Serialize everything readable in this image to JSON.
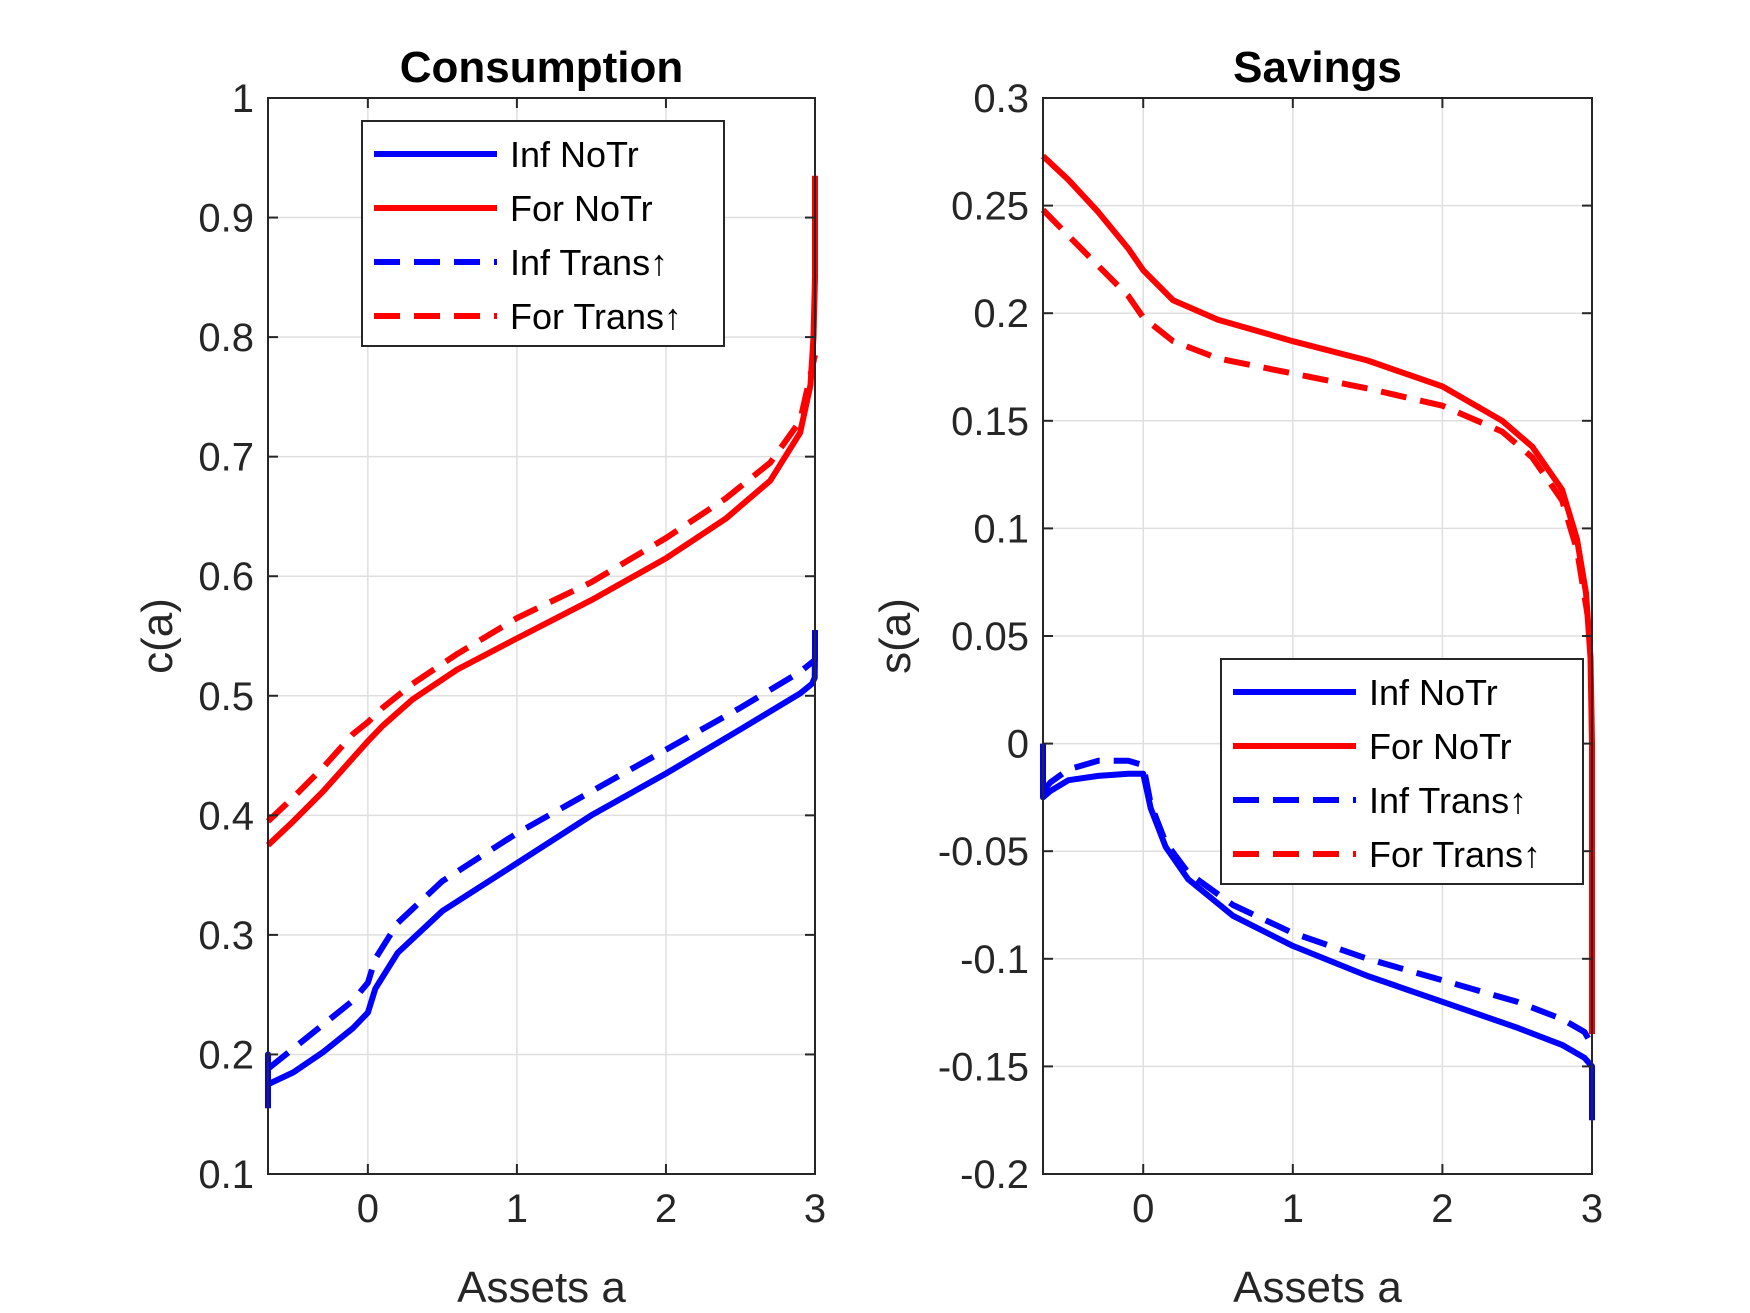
{
  "chart_data": [
    {
      "type": "line",
      "title": "Consumption",
      "xlabel": "Assets a",
      "ylabel": "c(a)",
      "xlim": [
        -0.67,
        3.0
      ],
      "ylim": [
        0.1,
        1.0
      ],
      "xticks": [
        0,
        1,
        2,
        3
      ],
      "yticks": [
        0.1,
        0.2,
        0.3,
        0.4,
        0.5,
        0.6,
        0.7,
        0.8,
        0.9,
        1
      ],
      "xtick_labels": [
        "0",
        "1",
        "2",
        "3"
      ],
      "ytick_labels": [
        "0.1",
        "0.2",
        "0.3",
        "0.4",
        "0.5",
        "0.6",
        "0.7",
        "0.8",
        "0.9",
        "1"
      ],
      "grid": true,
      "legend_position": "top-center",
      "series": [
        {
          "name": "Inf NoTr",
          "color": "#0000ff",
          "dash": "solid",
          "x": [
            -0.67,
            -0.67,
            -0.67,
            -0.5,
            -0.3,
            -0.1,
            0.0,
            0.05,
            0.2,
            0.5,
            1.0,
            1.5,
            2.0,
            2.5,
            2.9,
            2.98,
            2.998,
            3.0,
            3.0
          ],
          "y": [
            0.155,
            0.2,
            0.175,
            0.185,
            0.202,
            0.222,
            0.235,
            0.255,
            0.285,
            0.32,
            0.36,
            0.4,
            0.435,
            0.472,
            0.502,
            0.51,
            0.515,
            0.535,
            0.555
          ]
        },
        {
          "name": "For NoTr",
          "color": "#ff0000",
          "dash": "solid",
          "x": [
            -0.67,
            -0.5,
            -0.3,
            -0.1,
            0.0,
            0.1,
            0.3,
            0.6,
            1.0,
            1.5,
            2.0,
            2.4,
            2.7,
            2.9,
            2.97,
            2.99,
            3.0,
            3.0
          ],
          "y": [
            0.375,
            0.395,
            0.42,
            0.448,
            0.462,
            0.475,
            0.497,
            0.522,
            0.548,
            0.58,
            0.615,
            0.648,
            0.68,
            0.72,
            0.76,
            0.8,
            0.85,
            0.935
          ]
        },
        {
          "name": "Inf Trans↑",
          "color": "#0000ff",
          "dash": "dashed",
          "x": [
            -0.67,
            -0.5,
            -0.3,
            -0.1,
            0.0,
            0.05,
            0.2,
            0.5,
            1.0,
            1.5,
            2.0,
            2.5,
            2.9,
            3.0,
            3.0
          ],
          "y": [
            0.188,
            0.205,
            0.225,
            0.245,
            0.26,
            0.28,
            0.31,
            0.345,
            0.385,
            0.42,
            0.455,
            0.49,
            0.52,
            0.53,
            0.535
          ]
        },
        {
          "name": "For Trans↑",
          "color": "#ff0000",
          "dash": "dashed",
          "x": [
            -0.67,
            -0.5,
            -0.3,
            -0.1,
            0.0,
            0.1,
            0.3,
            0.6,
            1.0,
            1.5,
            2.0,
            2.4,
            2.7,
            2.9,
            3.0
          ],
          "y": [
            0.395,
            0.415,
            0.44,
            0.468,
            0.478,
            0.49,
            0.51,
            0.535,
            0.565,
            0.595,
            0.632,
            0.665,
            0.695,
            0.73,
            0.785
          ]
        }
      ]
    },
    {
      "type": "line",
      "title": "Savings",
      "xlabel": "Assets a",
      "ylabel": "s(a)",
      "xlim": [
        -0.67,
        3.0
      ],
      "ylim": [
        -0.2,
        0.3
      ],
      "xticks": [
        0,
        1,
        2,
        3
      ],
      "yticks": [
        -0.2,
        -0.15,
        -0.1,
        -0.05,
        0,
        0.05,
        0.1,
        0.15,
        0.2,
        0.25,
        0.3
      ],
      "xtick_labels": [
        "0",
        "1",
        "2",
        "3"
      ],
      "ytick_labels": [
        "-0.2",
        "-0.15",
        "-0.1",
        "-0.05",
        "0",
        "0.05",
        "0.1",
        "0.15",
        "0.2",
        "0.25",
        "0.3"
      ],
      "grid": true,
      "legend_position": "middle-right",
      "series": [
        {
          "name": "Inf NoTr",
          "color": "#0000ff",
          "dash": "solid",
          "x": [
            -0.67,
            -0.67,
            -0.62,
            -0.5,
            -0.3,
            -0.1,
            0.0,
            0.05,
            0.15,
            0.3,
            0.6,
            1.0,
            1.5,
            2.0,
            2.5,
            2.8,
            2.95,
            3.0,
            3.0
          ],
          "y": [
            0.0,
            -0.025,
            -0.022,
            -0.017,
            -0.015,
            -0.014,
            -0.014,
            -0.03,
            -0.048,
            -0.063,
            -0.08,
            -0.094,
            -0.108,
            -0.12,
            -0.132,
            -0.14,
            -0.146,
            -0.15,
            -0.175
          ]
        },
        {
          "name": "For NoTr",
          "color": "#ff0000",
          "dash": "solid",
          "x": [
            -0.67,
            -0.5,
            -0.3,
            -0.1,
            0.0,
            0.2,
            0.5,
            1.0,
            1.5,
            2.0,
            2.4,
            2.6,
            2.8,
            2.9,
            2.96,
            2.99,
            3.0,
            3.0
          ],
          "y": [
            0.273,
            0.262,
            0.247,
            0.23,
            0.22,
            0.206,
            0.197,
            0.187,
            0.178,
            0.166,
            0.15,
            0.138,
            0.118,
            0.095,
            0.07,
            0.04,
            0.0,
            -0.135
          ]
        },
        {
          "name": "Inf Trans↑",
          "color": "#0000ff",
          "dash": "dashed",
          "x": [
            -0.67,
            -0.62,
            -0.5,
            -0.3,
            -0.1,
            0.0,
            0.05,
            0.15,
            0.3,
            0.6,
            1.0,
            1.5,
            2.0,
            2.5,
            2.8,
            2.95,
            3.0
          ],
          "y": [
            -0.022,
            -0.018,
            -0.012,
            -0.008,
            -0.008,
            -0.01,
            -0.028,
            -0.046,
            -0.06,
            -0.075,
            -0.088,
            -0.1,
            -0.11,
            -0.12,
            -0.128,
            -0.134,
            -0.14
          ]
        },
        {
          "name": "For Trans↑",
          "color": "#ff0000",
          "dash": "dashed",
          "x": [
            -0.67,
            -0.5,
            -0.3,
            -0.1,
            0.0,
            0.2,
            0.5,
            1.0,
            1.5,
            2.0,
            2.4,
            2.6,
            2.8,
            2.9,
            2.97
          ],
          "y": [
            0.248,
            0.236,
            0.222,
            0.208,
            0.198,
            0.187,
            0.179,
            0.172,
            0.165,
            0.157,
            0.145,
            0.133,
            0.113,
            0.09,
            0.06
          ]
        }
      ]
    }
  ]
}
